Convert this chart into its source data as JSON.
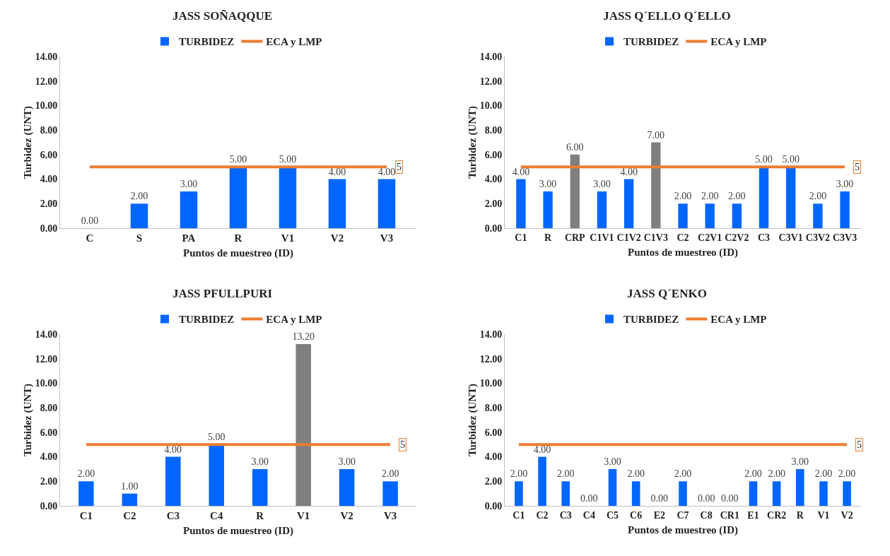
{
  "chart_data": [
    {
      "type": "bar",
      "title": "JASS SOÑAQQUE",
      "xlabel": "Puntos de muestreo (ID)",
      "ylabel": "Turbidez (UNT)",
      "categories": [
        "C",
        "S",
        "PA",
        "R",
        "V1",
        "V2",
        "V3"
      ],
      "ylim": [
        0,
        14
      ],
      "yticks": [
        {
          "value": 0,
          "label": "0.00"
        },
        {
          "value": 2,
          "label": "2.00"
        },
        {
          "value": 4,
          "label": "4.00"
        },
        {
          "value": 6,
          "label": "6.00"
        },
        {
          "value": 8,
          "label": "8.00"
        },
        {
          "value": 10,
          "label": "10.00"
        },
        {
          "value": 12,
          "label": "12.00"
        },
        {
          "value": 14,
          "label": "14.00"
        }
      ],
      "grid": false,
      "legend": "top",
      "annotations": [
        {
          "text": "5",
          "x": "V3",
          "y": 5
        }
      ],
      "series": [
        {
          "name": "TURBIDEZ",
          "color": "#0066ff",
          "colors": [
            "#0066ff",
            "#0066ff",
            "#0066ff",
            "#0066ff",
            "#0066ff",
            "#0066ff",
            "#0066ff"
          ],
          "values": [
            0,
            2,
            3,
            5,
            5,
            4,
            4
          ],
          "value_labels": [
            "0.00",
            "2.00",
            "3.00",
            "5.00",
            "5.00",
            "4.00",
            "4.00"
          ]
        },
        {
          "name": "ECA y LMP",
          "type": "line",
          "color": "#ed7d31",
          "values": [
            5,
            5,
            5,
            5,
            5,
            5,
            5
          ]
        }
      ]
    },
    {
      "type": "bar",
      "title": "JASS Q´ELLO Q´ELLO",
      "xlabel": "Puntos de muestreo (ID)",
      "ylabel": "Turbidez (UNT)",
      "categories": [
        "C1",
        "R",
        "CRP",
        "C1V1",
        "C1V2",
        "C1V3",
        "C2",
        "C2V1",
        "C2V2",
        "C3",
        "C3V1",
        "C3V2",
        "C3V3"
      ],
      "ylim": [
        0,
        14
      ],
      "yticks": [
        {
          "value": 0,
          "label": "0.00"
        },
        {
          "value": 2,
          "label": "2.00"
        },
        {
          "value": 4,
          "label": "4.00"
        },
        {
          "value": 6,
          "label": "6.00"
        },
        {
          "value": 8,
          "label": "8.00"
        },
        {
          "value": 10,
          "label": "10.00"
        },
        {
          "value": 12,
          "label": "12.00"
        },
        {
          "value": 14,
          "label": "14.00"
        }
      ],
      "grid": false,
      "legend": "top",
      "annotations": [
        {
          "text": "5",
          "x": "C3V3",
          "y": 5
        }
      ],
      "series": [
        {
          "name": "TURBIDEZ",
          "color": "#0066ff",
          "colors": [
            "#0066ff",
            "#0066ff",
            "#7f7f7f",
            "#0066ff",
            "#0066ff",
            "#7f7f7f",
            "#0066ff",
            "#0066ff",
            "#0066ff",
            "#0066ff",
            "#0066ff",
            "#0066ff",
            "#0066ff"
          ],
          "values": [
            4,
            3,
            6,
            3,
            4,
            7,
            2,
            2,
            2,
            5,
            5,
            2,
            3
          ],
          "value_labels": [
            "4.00",
            "3.00",
            "6.00",
            "3.00",
            "4.00",
            "7.00",
            "2.00",
            "2.00",
            "2.00",
            "5.00",
            "5.00",
            "2.00",
            "3.00"
          ]
        },
        {
          "name": "ECA y LMP",
          "type": "line",
          "color": "#ed7d31",
          "values": [
            5,
            5,
            5,
            5,
            5,
            5,
            5,
            5,
            5,
            5,
            5,
            5,
            5
          ]
        }
      ]
    },
    {
      "type": "bar",
      "title": "JASS PFULLPURI",
      "xlabel": "Puntos de muestreo (ID)",
      "ylabel": "Turbidez (UNT)",
      "categories": [
        "C1",
        "C2",
        "C3",
        "C4",
        "R",
        "V1",
        "V2",
        "V3"
      ],
      "ylim": [
        0,
        14
      ],
      "yticks": [
        {
          "value": 0,
          "label": "0.00"
        },
        {
          "value": 2,
          "label": "2.00"
        },
        {
          "value": 4,
          "label": "4.00"
        },
        {
          "value": 6,
          "label": "6.00"
        },
        {
          "value": 8,
          "label": "8.00"
        },
        {
          "value": 10,
          "label": "10.00"
        },
        {
          "value": 12,
          "label": "12.00"
        },
        {
          "value": 14,
          "label": "14.00"
        }
      ],
      "grid": false,
      "legend": "top",
      "annotations": [
        {
          "text": "5",
          "x": "V3",
          "y": 5
        }
      ],
      "series": [
        {
          "name": "TURBIDEZ",
          "color": "#0066ff",
          "colors": [
            "#0066ff",
            "#0066ff",
            "#0066ff",
            "#0066ff",
            "#0066ff",
            "#7f7f7f",
            "#0066ff",
            "#0066ff"
          ],
          "values": [
            2,
            1,
            4,
            5,
            3,
            13.2,
            3,
            2
          ],
          "value_labels": [
            "2.00",
            "1.00",
            "4.00",
            "5.00",
            "3.00",
            "13.20",
            "3.00",
            "2.00"
          ]
        },
        {
          "name": "ECA y LMP",
          "type": "line",
          "color": "#ed7d31",
          "values": [
            5,
            5,
            5,
            5,
            5,
            5,
            5,
            5
          ]
        }
      ]
    },
    {
      "type": "bar",
      "title": "JASS Q´ENKO",
      "xlabel": "Puntos de muestreo (ID)",
      "ylabel": "Turbidez (UNT)",
      "categories": [
        "C1",
        "C2",
        "C3",
        "C4",
        "C5",
        "C6",
        "E2",
        "C7",
        "C8",
        "CR1",
        "E1",
        "CR2",
        "R",
        "V1",
        "V2"
      ],
      "ylim": [
        0,
        14
      ],
      "yticks": [
        {
          "value": 0,
          "label": "0.00"
        },
        {
          "value": 2,
          "label": "2.00"
        },
        {
          "value": 4,
          "label": "4.00"
        },
        {
          "value": 6,
          "label": "6.00"
        },
        {
          "value": 8,
          "label": "8.00"
        },
        {
          "value": 10,
          "label": "10.00"
        },
        {
          "value": 12,
          "label": "12.00"
        },
        {
          "value": 14,
          "label": "14.00"
        }
      ],
      "grid": false,
      "legend": "top",
      "annotations": [
        {
          "text": "5",
          "x": "V2",
          "y": 5
        }
      ],
      "series": [
        {
          "name": "TURBIDEZ",
          "color": "#0066ff",
          "colors": [
            "#0066ff",
            "#0066ff",
            "#0066ff",
            "#0066ff",
            "#0066ff",
            "#0066ff",
            "#0066ff",
            "#0066ff",
            "#0066ff",
            "#0066ff",
            "#0066ff",
            "#0066ff",
            "#0066ff",
            "#0066ff",
            "#0066ff"
          ],
          "values": [
            2,
            4,
            2,
            0,
            3,
            2,
            0,
            2,
            0,
            0,
            2,
            2,
            3,
            2,
            2
          ],
          "value_labels": [
            "2.00",
            "4.00",
            "2.00",
            "0.00",
            "3.00",
            "2.00",
            "0.00",
            "2.00",
            "0.00",
            "0.00",
            "2.00",
            "2.00",
            "3.00",
            "2.00",
            "2.00"
          ]
        },
        {
          "name": "ECA y LMP",
          "type": "line",
          "color": "#ed7d31",
          "values": [
            5,
            5,
            5,
            5,
            5,
            5,
            5,
            5,
            5,
            5,
            5,
            5,
            5,
            5,
            5
          ]
        }
      ]
    }
  ]
}
